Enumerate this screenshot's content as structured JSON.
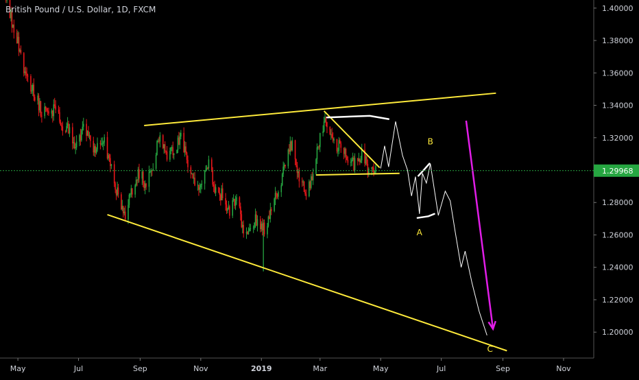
{
  "header": {
    "symbol": "British Pound / U.S. Dollar, 1D, FXCM"
  },
  "colors": {
    "background": "#000000",
    "bull": "#26a641",
    "bear": "#e8171a",
    "trendline": "#ffeb3b",
    "projection": "#ffffff",
    "arrow": "#e11de8",
    "price_line": "#26a641",
    "axis_text": "#d1d4dc"
  },
  "chart_data": {
    "type": "candlestick",
    "title": "British Pound / U.S. Dollar, 1D, FXCM",
    "x_ticks": [
      "May",
      "Jul",
      "Sep",
      "Nov",
      "2019",
      "Mar",
      "May",
      "Jul",
      "Sep",
      "Nov"
    ],
    "y_ticks": [
      "1.40000",
      "1.38000",
      "1.36000",
      "1.34000",
      "1.32000",
      "1.30000",
      "1.28000",
      "1.26000",
      "1.24000",
      "1.22000",
      "1.20000"
    ],
    "ylim": [
      1.184,
      1.405
    ],
    "date_range": [
      "2018-04-13",
      "2019-11-30"
    ],
    "current_price": 1.29968,
    "current_price_label": "1.29968",
    "price_path": [
      [
        "2018-04-13",
        1.423
      ],
      [
        "2018-04-20",
        1.405
      ],
      [
        "2018-04-27",
        1.386
      ],
      [
        "2018-05-04",
        1.372
      ],
      [
        "2018-05-11",
        1.354
      ],
      [
        "2018-05-18",
        1.346
      ],
      [
        "2018-05-25",
        1.336
      ],
      [
        "2018-06-01",
        1.333
      ],
      [
        "2018-06-08",
        1.341
      ],
      [
        "2018-06-15",
        1.327
      ],
      [
        "2018-06-22",
        1.324
      ],
      [
        "2018-06-29",
        1.315
      ],
      [
        "2018-07-06",
        1.325
      ],
      [
        "2018-07-13",
        1.316
      ],
      [
        "2018-07-20",
        1.313
      ],
      [
        "2018-07-27",
        1.318
      ],
      [
        "2018-08-03",
        1.303
      ],
      [
        "2018-08-10",
        1.282
      ],
      [
        "2018-08-17",
        1.273
      ],
      [
        "2018-08-24",
        1.287
      ],
      [
        "2018-08-31",
        1.298
      ],
      [
        "2018-09-07",
        1.291
      ],
      [
        "2018-09-14",
        1.305
      ],
      [
        "2018-09-21",
        1.321
      ],
      [
        "2018-09-28",
        1.308
      ],
      [
        "2018-10-05",
        1.312
      ],
      [
        "2018-10-12",
        1.322
      ],
      [
        "2018-10-19",
        1.306
      ],
      [
        "2018-10-26",
        1.289
      ],
      [
        "2018-11-02",
        1.292
      ],
      [
        "2018-11-09",
        1.305
      ],
      [
        "2018-11-16",
        1.286
      ],
      [
        "2018-11-23",
        1.285
      ],
      [
        "2018-11-30",
        1.274
      ],
      [
        "2018-12-07",
        1.282
      ],
      [
        "2018-12-14",
        1.263
      ],
      [
        "2018-12-21",
        1.264
      ],
      [
        "2018-12-28",
        1.27
      ],
      [
        "2019-01-04",
        1.262
      ],
      [
        "2019-01-11",
        1.277
      ],
      [
        "2019-01-18",
        1.287
      ],
      [
        "2019-01-25",
        1.305
      ],
      [
        "2019-02-01",
        1.317
      ],
      [
        "2019-02-08",
        1.297
      ],
      [
        "2019-02-15",
        1.285
      ],
      [
        "2019-02-22",
        1.295
      ],
      [
        "2019-03-01",
        1.322
      ],
      [
        "2019-03-08",
        1.33
      ],
      [
        "2019-03-15",
        1.317
      ],
      [
        "2019-03-22",
        1.313
      ],
      [
        "2019-03-29",
        1.307
      ],
      [
        "2019-04-05",
        1.303
      ],
      [
        "2019-04-12",
        1.309
      ],
      [
        "2019-04-19",
        1.3
      ],
      [
        "2019-04-26",
        1.302
      ]
    ],
    "annotations": {
      "trendlines": [
        {
          "name": "upper-channel-line",
          "from": [
            "2018-09-05",
            1.3275
          ],
          "to": [
            "2019-08-25",
            1.3475
          ]
        },
        {
          "name": "lower-channel-line",
          "from": [
            "2018-07-30",
            1.2725
          ],
          "to": [
            "2019-09-05",
            1.1885
          ]
        },
        {
          "name": "wedge-upper-line",
          "from": [
            "2019-03-05",
            1.3365
          ],
          "to": [
            "2019-04-30",
            1.3015
          ]
        },
        {
          "name": "wedge-lower-line",
          "from": [
            "2019-02-25",
            1.297
          ],
          "to": [
            "2019-05-20",
            1.298
          ]
        }
      ],
      "projection": [
        [
          "2019-05-01",
          1.301
        ],
        [
          "2019-05-05",
          1.315
        ],
        [
          "2019-05-09",
          1.302
        ],
        [
          "2019-05-16",
          1.33
        ],
        [
          "2019-05-23",
          1.309
        ],
        [
          "2019-05-28",
          1.3
        ],
        [
          "2019-06-01",
          1.284
        ],
        [
          "2019-06-05",
          1.296
        ],
        [
          "2019-06-09",
          1.273
        ],
        [
          "2019-06-12",
          1.298
        ],
        [
          "2019-06-16",
          1.292
        ],
        [
          "2019-06-20",
          1.304
        ],
        [
          "2019-06-24",
          1.288
        ],
        [
          "2019-06-28",
          1.272
        ],
        [
          "2019-07-05",
          1.287
        ],
        [
          "2019-07-10",
          1.281
        ],
        [
          "2019-07-15",
          1.262
        ],
        [
          "2019-07-21",
          1.24
        ],
        [
          "2019-07-25",
          1.25
        ],
        [
          "2019-08-01",
          1.23
        ],
        [
          "2019-08-08",
          1.213
        ],
        [
          "2019-08-16",
          1.198
        ]
      ],
      "highlight_segments": [
        [
          [
            "2019-03-08",
            1.3325
          ],
          [
            "2019-04-20",
            1.3335
          ],
          [
            "2019-05-09",
            1.3315
          ]
        ],
        [
          [
            "2019-06-08",
            1.2965
          ],
          [
            "2019-06-14",
            1.3005
          ],
          [
            "2019-06-19",
            1.304
          ]
        ],
        [
          [
            "2019-06-07",
            1.2705
          ],
          [
            "2019-06-18",
            1.2715
          ],
          [
            "2019-06-24",
            1.273
          ]
        ]
      ],
      "wave_labels": [
        {
          "text": "A",
          "date": "2019-06-09",
          "price": 1.2615
        },
        {
          "text": "B",
          "date": "2019-06-20",
          "price": 1.3175
        },
        {
          "text": "C",
          "date": "2019-08-19",
          "price": 1.1895
        }
      ],
      "arrow": {
        "from": [
          "2019-07-26",
          1.3305
        ],
        "to": [
          "2019-08-22",
          1.202
        ]
      },
      "spike_low": {
        "date": "2019-01-03",
        "high": 1.2625,
        "low": 1.2375
      }
    }
  }
}
